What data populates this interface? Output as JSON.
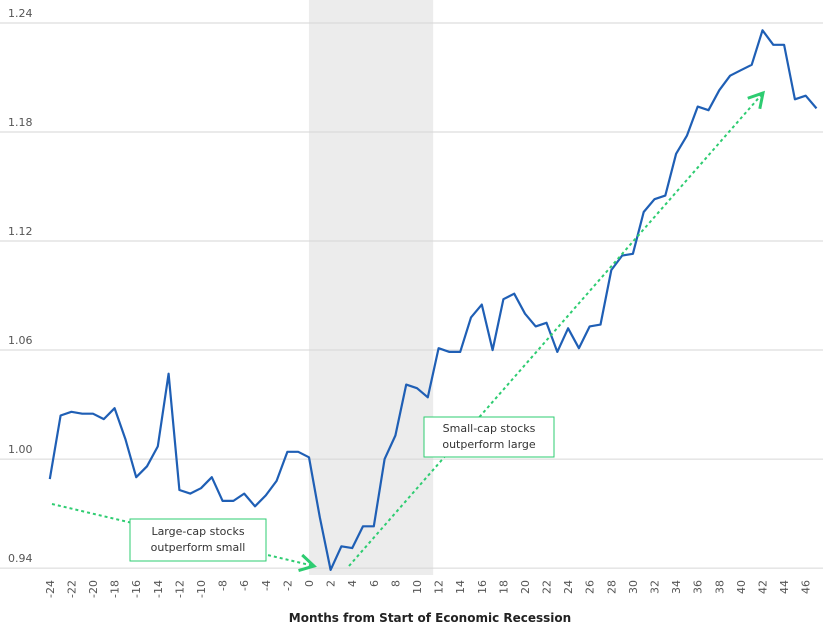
{
  "chart_data": {
    "type": "line",
    "x_label": "Months from Start of Economic Recession",
    "x": [
      -24,
      -23,
      -22,
      -21,
      -20,
      -19,
      -18,
      -17,
      -16,
      -15,
      -14,
      -13,
      -12,
      -11,
      -10,
      -9,
      -8,
      -7,
      -6,
      -5,
      -4,
      -3,
      -2,
      -1,
      0,
      1,
      2,
      3,
      4,
      5,
      6,
      7,
      8,
      9,
      10,
      11,
      12,
      13,
      14,
      15,
      16,
      17,
      18,
      19,
      20,
      21,
      22,
      23,
      24,
      25,
      26,
      27,
      28,
      29,
      30,
      31,
      32,
      33,
      34,
      35,
      36,
      37,
      38,
      39,
      40,
      41,
      42,
      43,
      44,
      45,
      46,
      47
    ],
    "series": [
      {
        "color": "#1f5fb5",
        "values": [
          0.989,
          1.024,
          1.026,
          1.025,
          1.025,
          1.022,
          1.028,
          1.011,
          0.99,
          0.996,
          1.007,
          1.047,
          0.983,
          0.981,
          0.984,
          0.99,
          0.977,
          0.977,
          0.981,
          0.974,
          0.98,
          0.988,
          1.004,
          1.004,
          1.001,
          0.968,
          0.939,
          0.952,
          0.951,
          0.963,
          0.963,
          1.0,
          1.013,
          1.041,
          1.039,
          1.034,
          1.061,
          1.059,
          1.059,
          1.078,
          1.085,
          1.06,
          1.088,
          1.091,
          1.08,
          1.073,
          1.075,
          1.059,
          1.072,
          1.061,
          1.073,
          1.074,
          1.104,
          1.112,
          1.113,
          1.136,
          1.143,
          1.145,
          1.168,
          1.178,
          1.194,
          1.192,
          1.203,
          1.211,
          1.214,
          1.217,
          1.236,
          1.228,
          1.228,
          1.198,
          1.2,
          1.193
        ]
      }
    ],
    "xlim": [
      -25,
      47.6
    ],
    "xticks": [
      -24,
      -22,
      -20,
      -18,
      -16,
      -14,
      -12,
      -10,
      -8,
      -6,
      -4,
      -2,
      0,
      2,
      4,
      6,
      8,
      10,
      12,
      14,
      16,
      18,
      20,
      22,
      24,
      26,
      28,
      30,
      32,
      34,
      36,
      38,
      40,
      42,
      44,
      46
    ],
    "ylim": [
      0.934,
      1.24
    ],
    "yticks": [
      0.94,
      {
        "value": 1.0,
        "label": "1.00"
      },
      1.06,
      1.12,
      1.18,
      1.24
    ],
    "grid": true,
    "shaded_region": [
      0,
      11.5
    ],
    "annotations": [
      {
        "lines": [
          "Large-cap stocks",
          "outperform small"
        ]
      },
      {
        "lines": [
          "Small-cap stocks",
          "outperform large"
        ]
      }
    ]
  }
}
